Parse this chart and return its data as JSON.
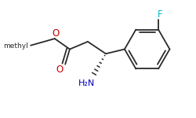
{
  "bg": "#ffffff",
  "bond_color": "#2a2a2a",
  "O_color": "#cc0000",
  "N_color": "#0000bb",
  "F_color": "#00bbcc",
  "lw": 1.3,
  "figsize": [
    2.5,
    1.5
  ],
  "dpi": 100,
  "methyl_label": "methyl",
  "NH2_label": "H₂N",
  "F_label": "F",
  "O_label": "O"
}
